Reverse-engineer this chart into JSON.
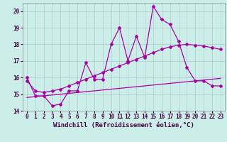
{
  "background_color": "#cceee8",
  "grid_color": "#aacccc",
  "line_color": "#aa00aa",
  "xlim": [
    -0.5,
    23.5
  ],
  "ylim": [
    14,
    20.5
  ],
  "xlabel": "Windchill (Refroidissement éolien,°C)",
  "xticks": [
    0,
    1,
    2,
    3,
    4,
    5,
    6,
    7,
    8,
    9,
    10,
    11,
    12,
    13,
    14,
    15,
    16,
    17,
    18,
    19,
    20,
    21,
    22,
    23
  ],
  "yticks": [
    14,
    15,
    16,
    17,
    18,
    19,
    20
  ],
  "series1_x": [
    0,
    1,
    2,
    3,
    4,
    5,
    6,
    7,
    8,
    9,
    10,
    11,
    12,
    13,
    14,
    15,
    16,
    17,
    18,
    19,
    20,
    21,
    22,
    23
  ],
  "series1_y": [
    16.0,
    14.9,
    14.9,
    14.3,
    14.4,
    15.2,
    15.2,
    16.9,
    15.9,
    15.9,
    18.0,
    19.0,
    17.0,
    18.5,
    17.2,
    20.3,
    19.5,
    19.2,
    18.2,
    16.6,
    15.8,
    15.8,
    15.5,
    15.5
  ],
  "series2_x": [
    0,
    1,
    2,
    3,
    4,
    5,
    6,
    7,
    8,
    9,
    10,
    11,
    12,
    13,
    14,
    15,
    16,
    17,
    18,
    19,
    20,
    21,
    22,
    23
  ],
  "series2_y": [
    15.8,
    15.2,
    15.1,
    15.2,
    15.3,
    15.5,
    15.7,
    15.9,
    16.1,
    16.3,
    16.5,
    16.7,
    16.9,
    17.1,
    17.3,
    17.5,
    17.7,
    17.85,
    17.95,
    18.0,
    17.95,
    17.9,
    17.8,
    17.7
  ],
  "series3_x": [
    0,
    1,
    2,
    3,
    4,
    5,
    6,
    7,
    8,
    9,
    10,
    11,
    12,
    13,
    14,
    15,
    16,
    17,
    18,
    19,
    20,
    21,
    22,
    23
  ],
  "series3_y": [
    14.8,
    14.85,
    14.9,
    14.95,
    15.0,
    15.05,
    15.1,
    15.15,
    15.2,
    15.25,
    15.3,
    15.35,
    15.4,
    15.45,
    15.5,
    15.55,
    15.6,
    15.65,
    15.7,
    15.75,
    15.8,
    15.85,
    15.9,
    15.95
  ],
  "tick_fontsize": 5.5,
  "xlabel_fontsize": 6.5,
  "marker": "D",
  "markersize": 2.0,
  "linewidth": 0.9
}
